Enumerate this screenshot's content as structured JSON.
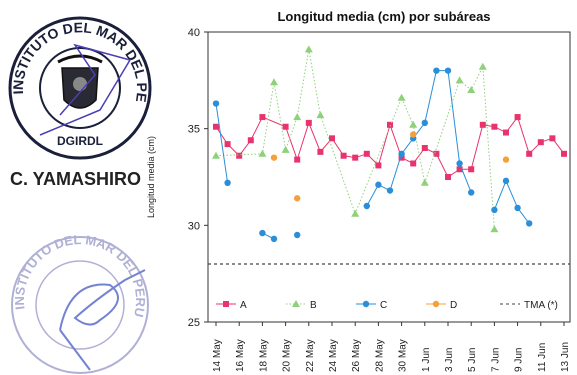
{
  "stamps": {
    "top_stamp_text": "INSTITUTO DEL MAR DEL PERU",
    "top_stamp_sub": "DGIRDL",
    "signatory_name": "C. YAMASHIRO",
    "bottom_stamp_text": "INSTITUTO DEL MAR DEL PERU"
  },
  "chart_data": {
    "type": "line",
    "title": "Longitud media (cm) por subáreas",
    "xlabel": "",
    "ylabel": "Longitud media (cm)",
    "ylim": [
      25,
      40
    ],
    "yticks": [
      25,
      30,
      35,
      40
    ],
    "grid": false,
    "legend_placement": "bottom",
    "x_tick_labels": [
      "14 May",
      "16 May",
      "18 May",
      "20 May",
      "22 May",
      "24 May",
      "26 May",
      "28 May",
      "30 May",
      "1 Jun",
      "3 Jun",
      "5 Jun",
      "7 Jun",
      "9 Jun",
      "11 Jun",
      "13 Jun"
    ],
    "x_start": "2024-05-14",
    "x_end": "2024-06-13",
    "series": [
      {
        "name": "A",
        "color": "#e8336d",
        "marker": "square",
        "line": "solid",
        "points": [
          [
            "2024-05-14",
            35.1
          ],
          [
            "2024-05-15",
            34.2
          ],
          [
            "2024-05-16",
            33.6
          ],
          [
            "2024-05-17",
            34.4
          ],
          [
            "2024-05-18",
            35.6
          ],
          [
            "2024-05-20",
            35.1
          ],
          [
            "2024-05-21",
            33.4
          ],
          [
            "2024-05-22",
            35.3
          ],
          [
            "2024-05-23",
            33.8
          ],
          [
            "2024-05-24",
            34.5
          ],
          [
            "2024-05-25",
            33.6
          ],
          [
            "2024-05-26",
            33.5
          ],
          [
            "2024-05-27",
            33.7
          ],
          [
            "2024-05-28",
            33.1
          ],
          [
            "2024-05-29",
            35.2
          ],
          [
            "2024-05-30",
            33.5
          ],
          [
            "2024-05-31",
            33.2
          ],
          [
            "2024-06-01",
            34.0
          ],
          [
            "2024-06-02",
            33.7
          ],
          [
            "2024-06-03",
            32.5
          ],
          [
            "2024-06-04",
            32.9
          ],
          [
            "2024-06-05",
            32.9
          ],
          [
            "2024-06-06",
            35.2
          ],
          [
            "2024-06-07",
            35.1
          ],
          [
            "2024-06-08",
            34.8
          ],
          [
            "2024-06-09",
            35.6
          ],
          [
            "2024-06-10",
            33.7
          ],
          [
            "2024-06-11",
            34.3
          ],
          [
            "2024-06-12",
            34.5
          ],
          [
            "2024-06-13",
            33.7
          ]
        ]
      },
      {
        "name": "B",
        "color": "#8fd17a",
        "marker": "triangle",
        "line": "dotted",
        "points": [
          [
            "2024-05-14",
            33.6
          ],
          [
            "2024-05-18",
            33.7
          ],
          [
            "2024-05-19",
            37.4
          ],
          [
            "2024-05-20",
            33.9
          ],
          [
            "2024-05-21",
            35.6
          ],
          [
            "2024-05-22",
            39.1
          ],
          [
            "2024-05-23",
            35.7
          ],
          [
            "2024-05-26",
            30.6
          ],
          [
            "2024-05-30",
            36.6
          ],
          [
            "2024-05-31",
            35.2
          ],
          [
            "2024-06-01",
            32.2
          ],
          [
            "2024-06-04",
            37.5
          ],
          [
            "2024-06-05",
            37.0
          ],
          [
            "2024-06-06",
            38.2
          ],
          [
            "2024-06-07",
            29.8
          ]
        ]
      },
      {
        "name": "C",
        "color": "#2a8fd8",
        "marker": "circle",
        "line": "solid",
        "segments": [
          [
            [
              "2024-05-14",
              36.3
            ],
            [
              "2024-05-15",
              32.2
            ]
          ],
          [
            [
              "2024-05-18",
              29.6
            ],
            [
              "2024-05-19",
              29.3
            ]
          ],
          [
            [
              "2024-05-21",
              29.5
            ]
          ],
          [
            [
              "2024-05-27",
              31.0
            ],
            [
              "2024-05-28",
              32.1
            ],
            [
              "2024-05-29",
              31.8
            ],
            [
              "2024-05-30",
              33.7
            ],
            [
              "2024-05-31",
              34.5
            ],
            [
              "2024-06-01",
              35.3
            ],
            [
              "2024-06-02",
              38.0
            ],
            [
              "2024-06-03",
              38.0
            ],
            [
              "2024-06-04",
              33.2
            ],
            [
              "2024-06-05",
              31.7
            ]
          ],
          [
            [
              "2024-06-07",
              30.8
            ],
            [
              "2024-06-08",
              32.3
            ],
            [
              "2024-06-09",
              30.9
            ],
            [
              "2024-06-10",
              30.1
            ]
          ]
        ]
      },
      {
        "name": "D",
        "color": "#f5a03c",
        "marker": "circle",
        "line": "solid",
        "points": [
          [
            "2024-05-19",
            33.5
          ],
          [
            "2024-05-21",
            31.4
          ],
          [
            "2024-05-31",
            34.7
          ],
          [
            "2024-06-08",
            33.4
          ]
        ]
      },
      {
        "name": "TMA (*)",
        "color": "#444444",
        "marker": "none",
        "line": "dashed",
        "value": 28.0
      }
    ]
  }
}
